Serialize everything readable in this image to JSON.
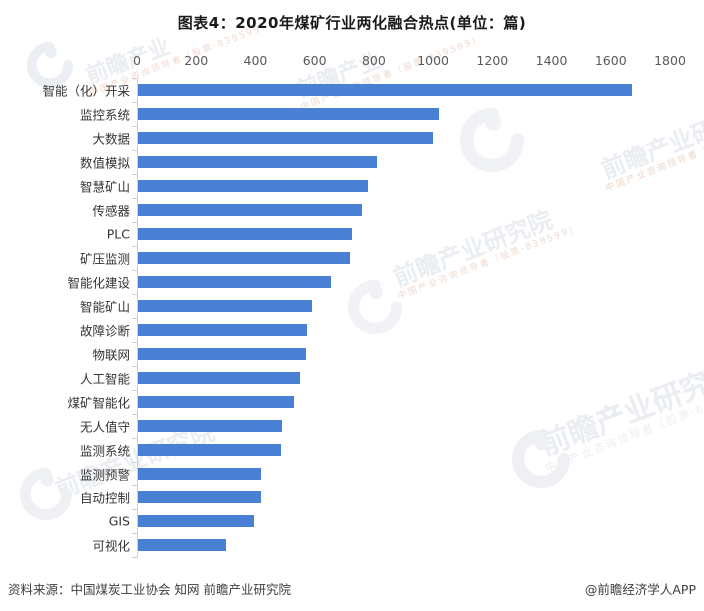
{
  "title": "图表4：2020年煤矿行业两化融合热点(单位：篇)",
  "chart_data": {
    "type": "bar",
    "orientation": "horizontal",
    "title": "图表4：2020年煤矿行业两化融合热点(单位：篇)",
    "unit": "篇",
    "categories": [
      "智能（化）开采",
      "监控系统",
      "大数据",
      "数值模拟",
      "智慧矿山",
      "传感器",
      "PLC",
      "矿压监测",
      "智能化建设",
      "智能矿山",
      "故障诊断",
      "物联网",
      "人工智能",
      "煤矿智能化",
      "无人值守",
      "监测系统",
      "监测预警",
      "自动控制",
      "GIS",
      "可视化"
    ],
    "values": [
      1670,
      1020,
      1000,
      810,
      780,
      760,
      725,
      720,
      655,
      590,
      575,
      570,
      550,
      530,
      490,
      485,
      420,
      418,
      395,
      300
    ],
    "xlim": [
      0,
      1800
    ],
    "x_ticks": [
      0,
      200,
      400,
      600,
      800,
      1000,
      1200,
      1400,
      1600,
      1800
    ],
    "bar_color": "#4a80d4",
    "grid": false,
    "legend": null
  },
  "footer": {
    "source": "资料来源：中国煤炭工业协会 知网 前瞻产业研究院",
    "credit": "@前瞻经济学人APP"
  },
  "watermark": {
    "brand_text": "前瞻产业研究院",
    "brand_short": "前瞻产业",
    "tagline": "中国产业咨询领导者（股票·839599）",
    "text_color": "#eaedf1",
    "tagline_warm_color": "#f0d9cd"
  }
}
